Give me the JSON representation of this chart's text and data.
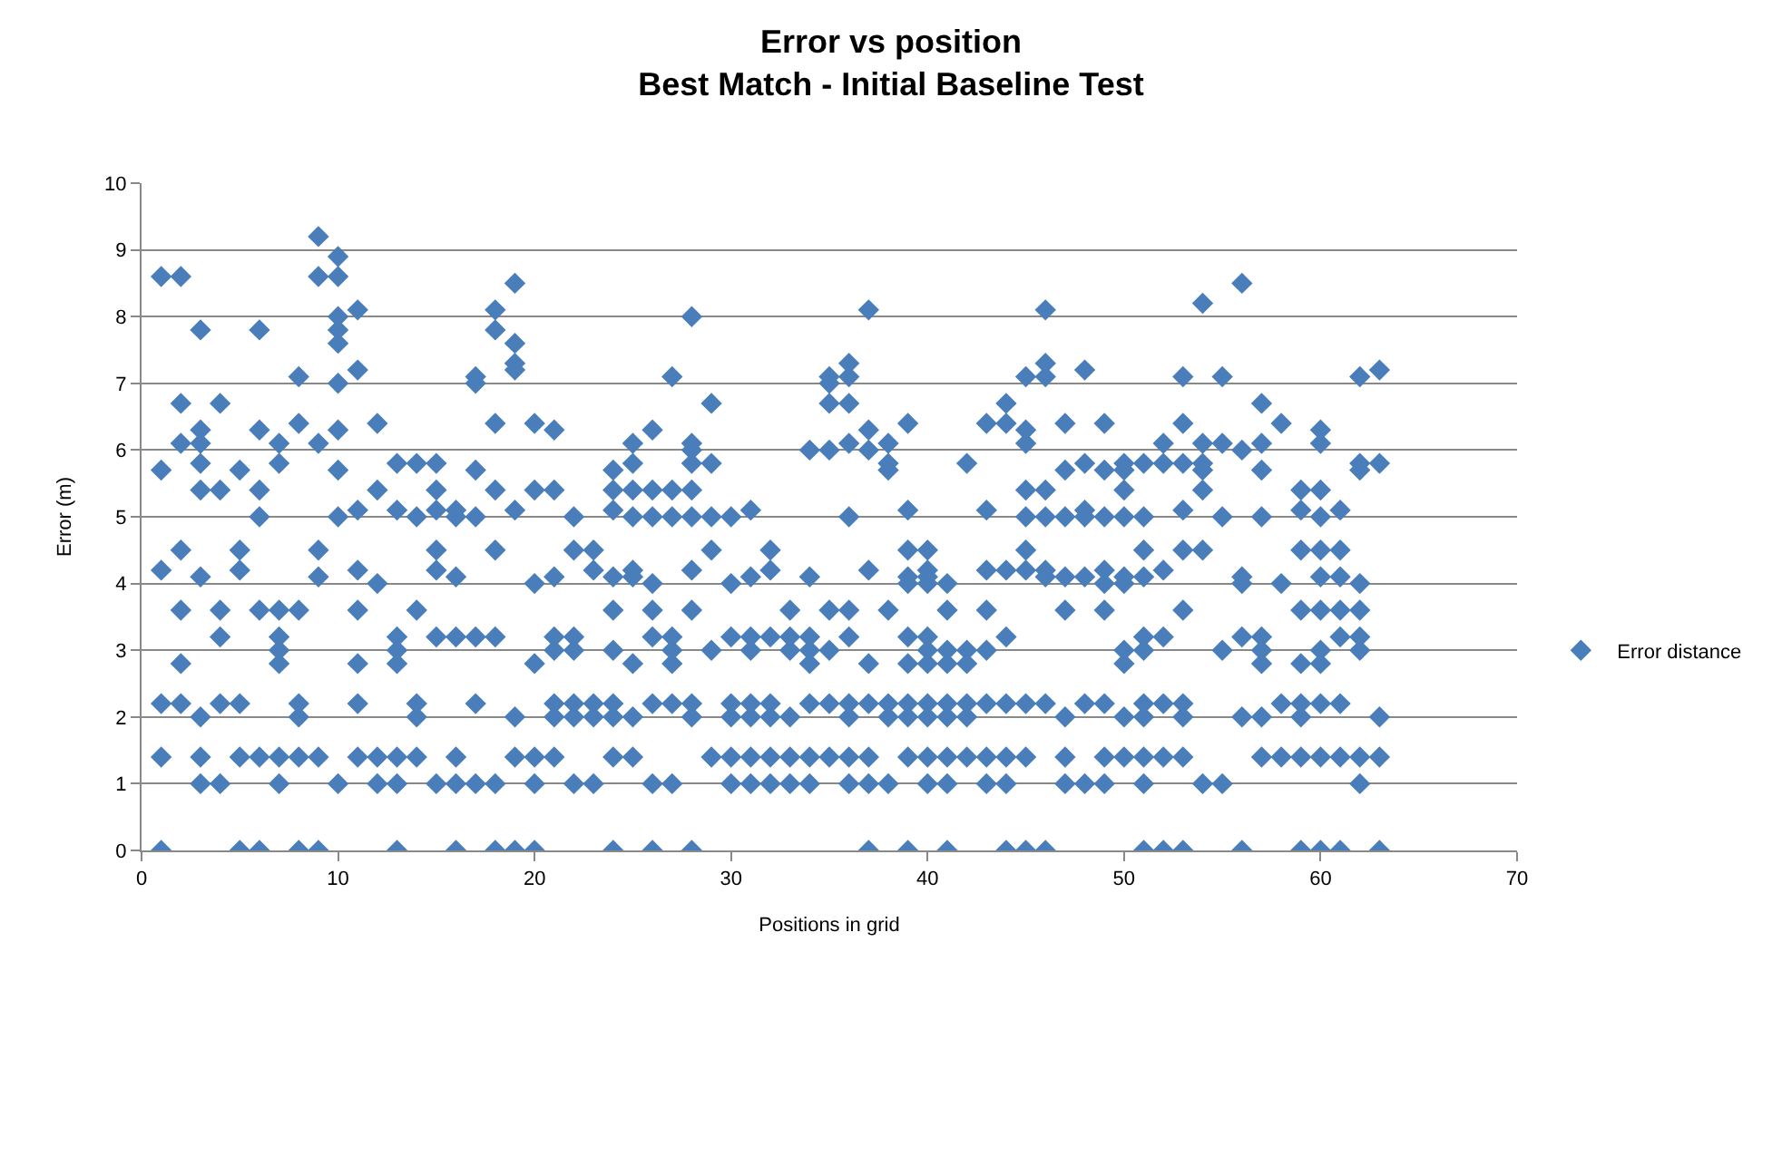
{
  "chart_data": {
    "type": "scatter",
    "title": "Error vs position\nBest Match - Initial Baseline Test",
    "xlabel": "Positions in grid",
    "ylabel": "Error (m)",
    "xlim": [
      0,
      70
    ],
    "xticks": [
      0,
      10,
      20,
      30,
      40,
      50,
      60,
      70
    ],
    "ylim": [
      0,
      10
    ],
    "yticks": [
      0,
      1,
      2,
      3,
      4,
      5,
      6,
      7,
      8,
      9,
      10
    ],
    "grid": "y",
    "legend": "right",
    "marker": "diamond",
    "series": [
      {
        "name": "Error distance",
        "color": "#4a7ebb",
        "x": [
          1,
          1,
          1,
          1,
          1,
          1,
          2,
          2,
          2,
          2,
          2,
          2,
          2,
          3,
          3,
          3,
          3,
          3,
          3,
          3,
          3,
          3,
          4,
          4,
          4,
          4,
          4,
          4,
          5,
          5,
          5,
          5,
          5,
          5,
          6,
          6,
          6,
          6,
          6,
          6,
          6,
          7,
          7,
          7,
          7,
          7,
          7,
          7,
          7,
          8,
          8,
          8,
          8,
          8,
          8,
          8,
          9,
          9,
          9,
          9,
          9,
          9,
          9,
          10,
          10,
          10,
          10,
          10,
          10,
          10,
          10,
          10,
          10,
          11,
          11,
          11,
          11,
          11,
          11,
          11,
          11,
          12,
          12,
          12,
          12,
          12,
          13,
          13,
          13,
          13,
          13,
          13,
          13,
          13,
          14,
          14,
          14,
          14,
          14,
          14,
          15,
          15,
          15,
          15,
          15,
          15,
          15,
          16,
          16,
          16,
          16,
          16,
          16,
          16,
          17,
          17,
          17,
          17,
          17,
          17,
          17,
          18,
          18,
          18,
          18,
          18,
          18,
          18,
          18,
          19,
          19,
          19,
          19,
          19,
          19,
          19,
          19,
          20,
          20,
          20,
          20,
          20,
          20,
          20,
          21,
          21,
          21,
          21,
          21,
          21,
          21,
          21,
          22,
          22,
          22,
          22,
          22,
          22,
          22,
          23,
          23,
          23,
          23,
          23,
          24,
          24,
          24,
          24,
          24,
          24,
          24,
          24,
          24,
          24,
          25,
          25,
          25,
          25,
          25,
          25,
          25,
          25,
          25,
          26,
          26,
          26,
          26,
          26,
          26,
          26,
          26,
          26,
          27,
          27,
          27,
          27,
          27,
          27,
          27,
          27,
          28,
          28,
          28,
          28,
          28,
          28,
          28,
          28,
          28,
          28,
          28,
          29,
          29,
          29,
          29,
          29,
          29,
          30,
          30,
          30,
          30,
          30,
          30,
          30,
          31,
          31,
          31,
          31,
          31,
          31,
          31,
          31,
          32,
          32,
          32,
          32,
          32,
          32,
          32,
          33,
          33,
          33,
          33,
          33,
          33,
          34,
          34,
          34,
          34,
          34,
          34,
          34,
          34,
          35,
          35,
          35,
          35,
          35,
          35,
          35,
          35,
          36,
          36,
          36,
          36,
          36,
          36,
          36,
          36,
          36,
          36,
          36,
          37,
          37,
          37,
          37,
          37,
          37,
          37,
          37,
          37,
          38,
          38,
          38,
          38,
          38,
          38,
          38,
          39,
          39,
          39,
          39,
          39,
          39,
          39,
          39,
          39,
          39,
          39,
          40,
          40,
          40,
          40,
          40,
          40,
          40,
          40,
          40,
          40,
          40,
          41,
          41,
          41,
          41,
          41,
          41,
          41,
          41,
          41,
          42,
          42,
          42,
          42,
          42,
          42,
          43,
          43,
          43,
          43,
          43,
          43,
          43,
          43,
          44,
          44,
          44,
          44,
          44,
          44,
          44,
          44,
          45,
          45,
          45,
          45,
          45,
          45,
          45,
          45,
          45,
          45,
          46,
          46,
          46,
          46,
          46,
          46,
          46,
          46,
          46,
          47,
          47,
          47,
          47,
          47,
          47,
          47,
          47,
          48,
          48,
          48,
          48,
          48,
          48,
          48,
          49,
          49,
          49,
          49,
          49,
          49,
          49,
          49,
          49,
          50,
          50,
          50,
          50,
          50,
          50,
          50,
          50,
          50,
          50,
          51,
          51,
          51,
          51,
          51,
          51,
          51,
          51,
          51,
          51,
          51,
          52,
          52,
          52,
          52,
          52,
          52,
          52,
          53,
          53,
          53,
          53,
          53,
          53,
          53,
          53,
          53,
          53,
          54,
          54,
          54,
          54,
          54,
          54,
          54,
          55,
          55,
          55,
          55,
          55,
          56,
          56,
          56,
          56,
          56,
          56,
          56,
          57,
          57,
          57,
          57,
          57,
          57,
          57,
          57,
          57,
          58,
          58,
          58,
          58,
          59,
          59,
          59,
          59,
          59,
          59,
          59,
          59,
          59,
          60,
          60,
          60,
          60,
          60,
          60,
          60,
          60,
          60,
          60,
          60,
          60,
          61,
          61,
          61,
          61,
          61,
          61,
          61,
          61,
          62,
          62,
          62,
          62,
          62,
          62,
          62,
          62,
          62,
          63,
          63,
          63,
          63,
          63
        ],
        "values": [
          8.6,
          5.7,
          4.2,
          2.2,
          1.4,
          0,
          8.6,
          6.7,
          6.1,
          4.5,
          3.6,
          2.8,
          2.2,
          7.8,
          6.3,
          6.1,
          5.8,
          5.4,
          4.1,
          2.0,
          1.4,
          1.0,
          6.7,
          5.4,
          3.6,
          3.2,
          2.2,
          1.0,
          5.7,
          4.5,
          4.2,
          2.2,
          1.4,
          0,
          7.8,
          6.3,
          5.4,
          5.0,
          3.6,
          1.4,
          0,
          6.1,
          5.8,
          3.6,
          3.2,
          3.0,
          2.8,
          1.4,
          1.0,
          7.1,
          6.4,
          3.6,
          2.2,
          2.0,
          1.4,
          0,
          9.2,
          8.6,
          6.1,
          4.5,
          4.1,
          1.4,
          0,
          8.9,
          8.6,
          8.0,
          7.8,
          7.6,
          7.0,
          6.3,
          5.7,
          5.0,
          1.0,
          8.1,
          7.2,
          5.1,
          4.2,
          3.6,
          2.8,
          2.2,
          1.4,
          6.4,
          5.4,
          4.0,
          1.4,
          1.0,
          5.8,
          5.1,
          3.2,
          3.0,
          2.8,
          1.4,
          1.0,
          0,
          5.8,
          5.0,
          3.6,
          2.2,
          2.0,
          1.4,
          5.8,
          5.4,
          5.1,
          4.5,
          4.2,
          3.2,
          1.0,
          5.1,
          5.0,
          4.1,
          3.2,
          1.4,
          1.0,
          0,
          7.1,
          7.0,
          5.7,
          5.0,
          3.2,
          2.2,
          1.0,
          8.1,
          7.8,
          6.4,
          5.4,
          4.5,
          3.2,
          1.0,
          0,
          8.5,
          7.6,
          7.3,
          7.2,
          5.1,
          2.0,
          1.4,
          0,
          6.4,
          5.4,
          4.0,
          2.8,
          1.4,
          1.0,
          0,
          6.3,
          5.4,
          4.1,
          3.2,
          3.0,
          2.2,
          2.0,
          1.4,
          5.0,
          4.5,
          3.2,
          3.0,
          2.2,
          2.0,
          1.0,
          4.5,
          4.2,
          2.2,
          2.0,
          1.0,
          5.7,
          5.4,
          5.1,
          4.1,
          3.6,
          3.0,
          2.2,
          2.0,
          1.4,
          0,
          6.1,
          5.8,
          5.4,
          5.0,
          4.2,
          4.1,
          2.8,
          2.0,
          1.4,
          6.3,
          5.4,
          5.0,
          4.0,
          3.6,
          3.2,
          2.2,
          1.0,
          0,
          7.1,
          5.4,
          5.0,
          3.2,
          3.0,
          2.8,
          2.2,
          1.0,
          8.0,
          6.1,
          6.0,
          5.8,
          5.4,
          5.0,
          4.2,
          3.6,
          2.2,
          2.0,
          0,
          6.7,
          5.8,
          5.0,
          4.5,
          3.0,
          1.4,
          5.0,
          4.0,
          3.2,
          2.2,
          2.0,
          1.4,
          1.0,
          5.1,
          4.1,
          3.2,
          3.0,
          2.2,
          2.0,
          1.4,
          1.0,
          4.5,
          4.2,
          3.2,
          2.2,
          2.0,
          1.4,
          1.0,
          3.6,
          3.2,
          3.0,
          2.0,
          1.4,
          1.0,
          6.0,
          4.1,
          3.2,
          3.0,
          2.8,
          2.2,
          1.4,
          1.0,
          7.1,
          7.0,
          6.7,
          6.0,
          3.6,
          3.0,
          2.2,
          1.4,
          7.3,
          7.1,
          6.7,
          6.1,
          5.0,
          3.6,
          3.2,
          2.2,
          2.0,
          1.4,
          1.0,
          8.1,
          6.3,
          6.0,
          4.2,
          2.8,
          2.2,
          1.4,
          1.0,
          0,
          6.1,
          5.8,
          5.7,
          3.6,
          2.2,
          2.0,
          1.0,
          6.4,
          5.1,
          4.5,
          4.1,
          4.0,
          3.2,
          2.8,
          2.2,
          2.0,
          1.4,
          0,
          4.5,
          4.2,
          4.1,
          4.0,
          3.2,
          3.0,
          2.8,
          2.2,
          2.0,
          1.4,
          1.0,
          4.0,
          3.6,
          3.0,
          2.8,
          2.2,
          2.0,
          1.4,
          1.0,
          0,
          5.8,
          3.0,
          2.8,
          2.2,
          2.0,
          1.4,
          6.4,
          5.1,
          4.2,
          3.6,
          3.0,
          2.2,
          1.4,
          1.0,
          6.7,
          6.4,
          4.2,
          3.2,
          2.2,
          1.4,
          1.0,
          0,
          7.1,
          6.3,
          6.1,
          5.4,
          5.0,
          4.5,
          4.2,
          2.2,
          1.4,
          0,
          8.1,
          7.3,
          7.1,
          5.4,
          5.0,
          4.2,
          4.1,
          2.2,
          0,
          6.4,
          5.7,
          5.0,
          4.1,
          3.6,
          2.0,
          1.4,
          1.0,
          7.2,
          5.8,
          5.1,
          5.0,
          4.1,
          2.2,
          1.0,
          6.4,
          5.7,
          5.0,
          4.2,
          4.0,
          3.6,
          2.2,
          1.4,
          1.0,
          5.8,
          5.7,
          5.4,
          5.0,
          4.1,
          4.0,
          3.0,
          2.8,
          2.0,
          1.4,
          5.8,
          5.0,
          4.5,
          4.1,
          3.2,
          3.0,
          2.2,
          2.0,
          1.4,
          1.0,
          0,
          6.1,
          5.8,
          4.2,
          3.2,
          2.2,
          1.4,
          0,
          7.1,
          6.4,
          5.8,
          5.1,
          4.5,
          3.6,
          2.2,
          2.0,
          1.4,
          0,
          8.2,
          6.1,
          5.8,
          5.7,
          5.4,
          4.5,
          1.0,
          7.1,
          6.1,
          5.0,
          3.0,
          1.0,
          8.5,
          6.0,
          4.1,
          4.0,
          3.2,
          2.0,
          0,
          6.7,
          6.1,
          5.7,
          5.0,
          3.2,
          3.0,
          2.8,
          2.0,
          1.4,
          6.4,
          4.0,
          2.2,
          1.4,
          5.4,
          5.1,
          4.5,
          3.6,
          2.8,
          2.2,
          2.0,
          1.4,
          0,
          6.3,
          6.1,
          5.4,
          5.0,
          4.5,
          4.1,
          3.6,
          3.0,
          2.8,
          2.2,
          1.4,
          0,
          5.1,
          4.5,
          4.1,
          3.6,
          3.2,
          2.2,
          1.4,
          0,
          7.1,
          5.8,
          5.7,
          4.0,
          3.6,
          3.2,
          3.0,
          1.4,
          1.0,
          7.2,
          5.8,
          2.0,
          1.4,
          0
        ]
      }
    ]
  }
}
